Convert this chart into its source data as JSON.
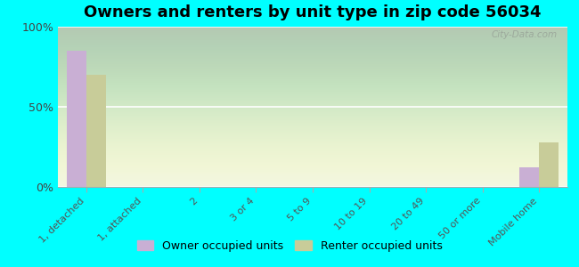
{
  "title": "Owners and renters by unit type in zip code 56034",
  "categories": [
    "1, detached",
    "1, attached",
    "2",
    "3 or 4",
    "5 to 9",
    "10 to 19",
    "20 to 49",
    "50 or more",
    "Mobile home"
  ],
  "owner_values": [
    85,
    0,
    0,
    0,
    0,
    0,
    0,
    0,
    12
  ],
  "renter_values": [
    70,
    0,
    0,
    0,
    0,
    0,
    0,
    0,
    28
  ],
  "owner_color": "#c9afd4",
  "renter_color": "#c8cc99",
  "background_color": "#00ffff",
  "ylim": [
    0,
    100
  ],
  "yticks": [
    0,
    50,
    100
  ],
  "ytick_labels": [
    "0%",
    "50%",
    "100%"
  ],
  "title_fontsize": 13,
  "legend_labels": [
    "Owner occupied units",
    "Renter occupied units"
  ],
  "watermark": "City-Data.com",
  "bar_width": 0.35
}
